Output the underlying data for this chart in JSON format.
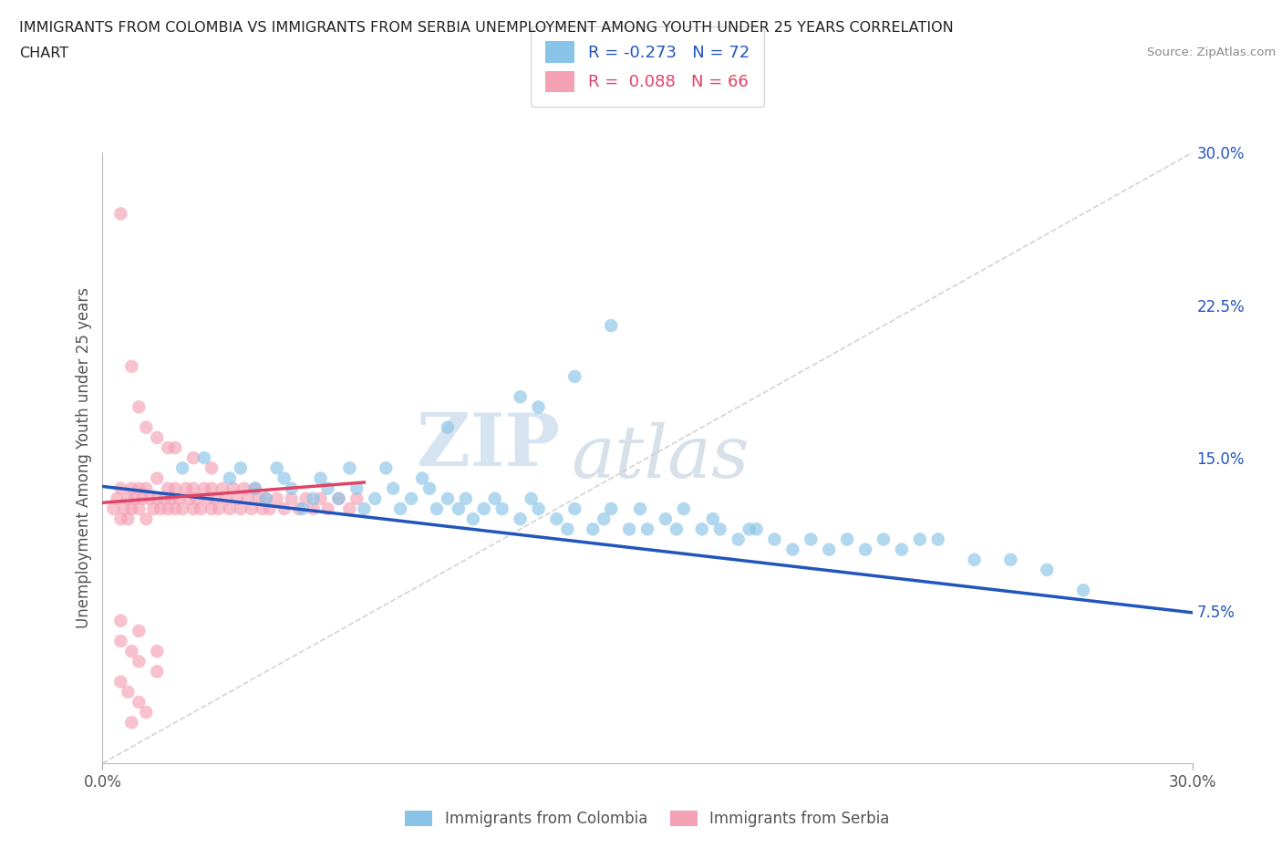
{
  "title_line1": "IMMIGRANTS FROM COLOMBIA VS IMMIGRANTS FROM SERBIA UNEMPLOYMENT AMONG YOUTH UNDER 25 YEARS CORRELATION",
  "title_line2": "CHART",
  "source": "Source: ZipAtlas.com",
  "ylabel": "Unemployment Among Youth under 25 years",
  "xlim": [
    0.0,
    0.3
  ],
  "ylim": [
    0.0,
    0.3
  ],
  "ytick_right_labels": [
    "7.5%",
    "15.0%",
    "22.5%",
    "30.0%"
  ],
  "ytick_right_values": [
    0.075,
    0.15,
    0.225,
    0.3
  ],
  "colombia_color": "#89C4E8",
  "serbia_color": "#F4A0B5",
  "colombia_line_color": "#2255BB",
  "serbia_line_color": "#DD4466",
  "colombia_label": "Immigrants from Colombia",
  "serbia_label": "Immigrants from Serbia",
  "legend_R_label_colombia": "R = -0.273   N = 72",
  "legend_R_label_serbia": "R =  0.088   N = 66",
  "watermark_zip": "ZIP",
  "watermark_atlas": "atlas",
  "background_color": "#ffffff",
  "grid_color": "#dddddd",
  "colombia_points_x": [
    0.022,
    0.028,
    0.035,
    0.038,
    0.042,
    0.045,
    0.048,
    0.05,
    0.052,
    0.055,
    0.058,
    0.06,
    0.062,
    0.065,
    0.068,
    0.07,
    0.072,
    0.075,
    0.078,
    0.08,
    0.082,
    0.085,
    0.088,
    0.09,
    0.092,
    0.095,
    0.098,
    0.1,
    0.102,
    0.105,
    0.108,
    0.11,
    0.115,
    0.118,
    0.12,
    0.125,
    0.128,
    0.13,
    0.135,
    0.138,
    0.14,
    0.145,
    0.148,
    0.15,
    0.155,
    0.158,
    0.16,
    0.165,
    0.168,
    0.17,
    0.175,
    0.178,
    0.18,
    0.185,
    0.19,
    0.195,
    0.2,
    0.205,
    0.21,
    0.215,
    0.22,
    0.225,
    0.23,
    0.24,
    0.25,
    0.26,
    0.27,
    0.14,
    0.13,
    0.12,
    0.115,
    0.095
  ],
  "colombia_points_y": [
    0.145,
    0.15,
    0.14,
    0.145,
    0.135,
    0.13,
    0.145,
    0.14,
    0.135,
    0.125,
    0.13,
    0.14,
    0.135,
    0.13,
    0.145,
    0.135,
    0.125,
    0.13,
    0.145,
    0.135,
    0.125,
    0.13,
    0.14,
    0.135,
    0.125,
    0.13,
    0.125,
    0.13,
    0.12,
    0.125,
    0.13,
    0.125,
    0.12,
    0.13,
    0.125,
    0.12,
    0.115,
    0.125,
    0.115,
    0.12,
    0.125,
    0.115,
    0.125,
    0.115,
    0.12,
    0.115,
    0.125,
    0.115,
    0.12,
    0.115,
    0.11,
    0.115,
    0.115,
    0.11,
    0.105,
    0.11,
    0.105,
    0.11,
    0.105,
    0.11,
    0.105,
    0.11,
    0.11,
    0.1,
    0.1,
    0.095,
    0.085,
    0.215,
    0.19,
    0.175,
    0.18,
    0.165
  ],
  "serbia_points_x": [
    0.003,
    0.004,
    0.005,
    0.005,
    0.006,
    0.007,
    0.007,
    0.008,
    0.008,
    0.009,
    0.01,
    0.01,
    0.011,
    0.012,
    0.012,
    0.013,
    0.014,
    0.015,
    0.015,
    0.016,
    0.017,
    0.018,
    0.018,
    0.019,
    0.02,
    0.02,
    0.021,
    0.022,
    0.023,
    0.024,
    0.025,
    0.025,
    0.026,
    0.027,
    0.028,
    0.029,
    0.03,
    0.03,
    0.031,
    0.032,
    0.033,
    0.034,
    0.035,
    0.036,
    0.037,
    0.038,
    0.039,
    0.04,
    0.041,
    0.042,
    0.043,
    0.044,
    0.045,
    0.046,
    0.048,
    0.05,
    0.052,
    0.054,
    0.056,
    0.058,
    0.06,
    0.062,
    0.065,
    0.068,
    0.07,
    0.005
  ],
  "serbia_points_y": [
    0.125,
    0.13,
    0.12,
    0.135,
    0.125,
    0.13,
    0.12,
    0.135,
    0.125,
    0.13,
    0.125,
    0.135,
    0.13,
    0.12,
    0.135,
    0.13,
    0.125,
    0.13,
    0.14,
    0.125,
    0.13,
    0.125,
    0.135,
    0.13,
    0.125,
    0.135,
    0.13,
    0.125,
    0.135,
    0.13,
    0.125,
    0.135,
    0.13,
    0.125,
    0.135,
    0.13,
    0.125,
    0.135,
    0.13,
    0.125,
    0.135,
    0.13,
    0.125,
    0.135,
    0.13,
    0.125,
    0.135,
    0.13,
    0.125,
    0.135,
    0.13,
    0.125,
    0.13,
    0.125,
    0.13,
    0.125,
    0.13,
    0.125,
    0.13,
    0.125,
    0.13,
    0.125,
    0.13,
    0.125,
    0.13,
    0.27
  ],
  "serbia_outliers_x": [
    0.008,
    0.01,
    0.012,
    0.015,
    0.018,
    0.02,
    0.025,
    0.03,
    0.005,
    0.008,
    0.01,
    0.015,
    0.005,
    0.007,
    0.01,
    0.012,
    0.008,
    0.005,
    0.01,
    0.015
  ],
  "serbia_outliers_y": [
    0.195,
    0.175,
    0.165,
    0.16,
    0.155,
    0.155,
    0.15,
    0.145,
    0.06,
    0.055,
    0.05,
    0.045,
    0.04,
    0.035,
    0.03,
    0.025,
    0.02,
    0.07,
    0.065,
    0.055
  ]
}
